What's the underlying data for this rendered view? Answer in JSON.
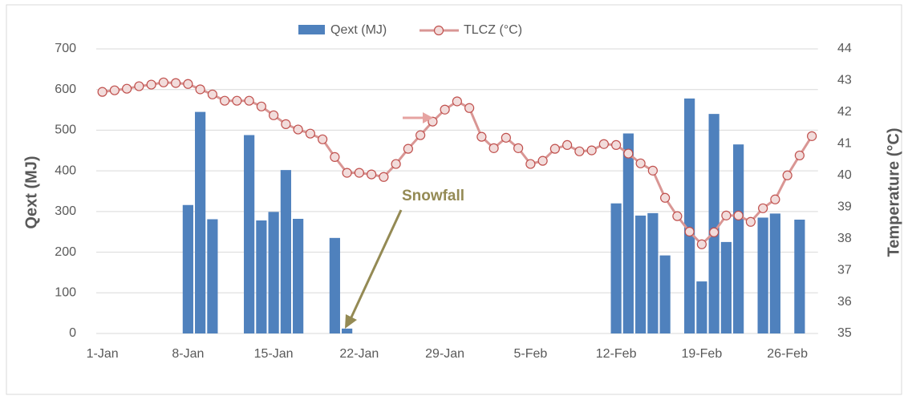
{
  "chart_data": {
    "type": "bar-line",
    "categories": [
      "1-Jan",
      null,
      null,
      null,
      null,
      null,
      null,
      "8-Jan",
      null,
      null,
      null,
      null,
      null,
      null,
      "15-Jan",
      null,
      null,
      null,
      null,
      null,
      null,
      "22-Jan",
      null,
      null,
      null,
      null,
      null,
      null,
      "29-Jan",
      null,
      null,
      null,
      null,
      null,
      null,
      "5-Feb",
      null,
      null,
      null,
      null,
      null,
      null,
      "12-Feb",
      null,
      null,
      null,
      null,
      null,
      null,
      "19-Feb",
      null,
      null,
      null,
      null,
      null,
      null,
      "26-Feb",
      null,
      null
    ],
    "series": [
      {
        "name": "Qext (MJ)",
        "type": "bar",
        "color": "#4f81bd",
        "values": [
          0,
          0,
          0,
          0,
          0,
          0,
          0,
          316,
          545,
          281,
          0,
          0,
          488,
          278,
          299,
          402,
          282,
          0,
          0,
          235,
          12,
          0,
          0,
          0,
          0,
          0,
          0,
          0,
          0,
          0,
          0,
          0,
          0,
          0,
          0,
          0,
          0,
          0,
          0,
          0,
          0,
          0,
          320,
          492,
          290,
          296,
          192,
          0,
          578,
          128,
          540,
          225,
          465,
          0,
          285,
          295,
          0,
          280,
          0
        ]
      },
      {
        "name": "TLCZ (°C)",
        "type": "line",
        "axis": "y2",
        "color": "#d99694",
        "values": [
          42.64,
          42.69,
          42.74,
          42.82,
          42.87,
          42.94,
          42.92,
          42.89,
          42.72,
          42.56,
          42.36,
          42.36,
          42.36,
          42.18,
          41.9,
          41.62,
          41.45,
          41.32,
          41.14,
          40.58,
          40.08,
          40.08,
          40.03,
          39.95,
          40.36,
          40.84,
          41.27,
          41.7,
          42.08,
          42.34,
          42.13,
          41.22,
          40.86,
          41.19,
          40.86,
          40.36,
          40.46,
          40.84,
          40.96,
          40.76,
          40.79,
          40.99,
          40.96,
          40.69,
          40.38,
          40.15,
          39.29,
          38.71,
          38.22,
          37.82,
          38.2,
          38.73,
          38.73,
          38.53,
          38.96,
          39.24,
          40.0,
          40.63,
          41.24
        ]
      }
    ],
    "ylabel": "Qext (MJ)",
    "y2label": "Temperature (°C)",
    "ylim": [
      0,
      700
    ],
    "yticks": [
      0,
      100,
      200,
      300,
      400,
      500,
      600,
      700
    ],
    "y2lim": [
      35,
      44
    ],
    "y2ticks": [
      35,
      36,
      37,
      38,
      39,
      40,
      41,
      42,
      43,
      44
    ],
    "grid": true,
    "legend": "top",
    "annotations": [
      "Snowfall"
    ]
  }
}
